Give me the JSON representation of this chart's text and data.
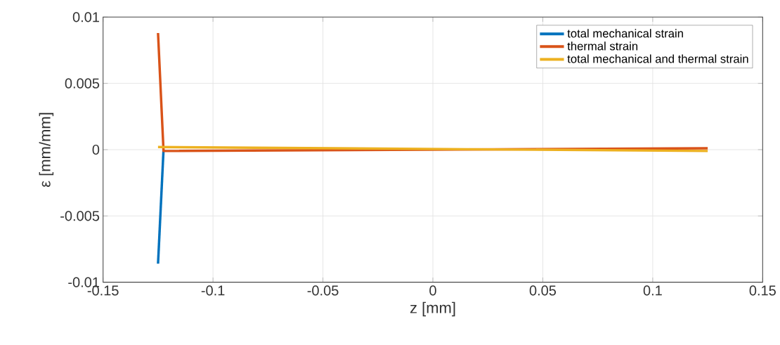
{
  "chart_data": {
    "type": "line",
    "xlabel": "z [mm]",
    "ylabel": "ε [mm/mm]",
    "xlim": [
      -0.15,
      0.15
    ],
    "xticks": [
      -0.15,
      -0.1,
      -0.05,
      0,
      0.05,
      0.1,
      0.15
    ],
    "ylim": [
      -0.01,
      0.01
    ],
    "yticks": [
      -0.01,
      -0.005,
      0,
      0.005,
      0.01
    ],
    "grid": true,
    "legend": "top right",
    "series": [
      {
        "name": "total mechanical strain",
        "color": "#0072bd",
        "x": [
          -0.125,
          -0.1225
        ],
        "values": [
          -0.0086,
          0.0
        ]
      },
      {
        "name": "thermal strain",
        "color": "#d95319",
        "x": [
          -0.125,
          -0.1225,
          0.125
        ],
        "values": [
          0.0088,
          -0.0001,
          0.0001
        ]
      },
      {
        "name": "total mechanical and thermal strain",
        "color": "#edb120",
        "x": [
          -0.125,
          0.125
        ],
        "values": [
          0.0002,
          -0.0001
        ]
      }
    ]
  }
}
